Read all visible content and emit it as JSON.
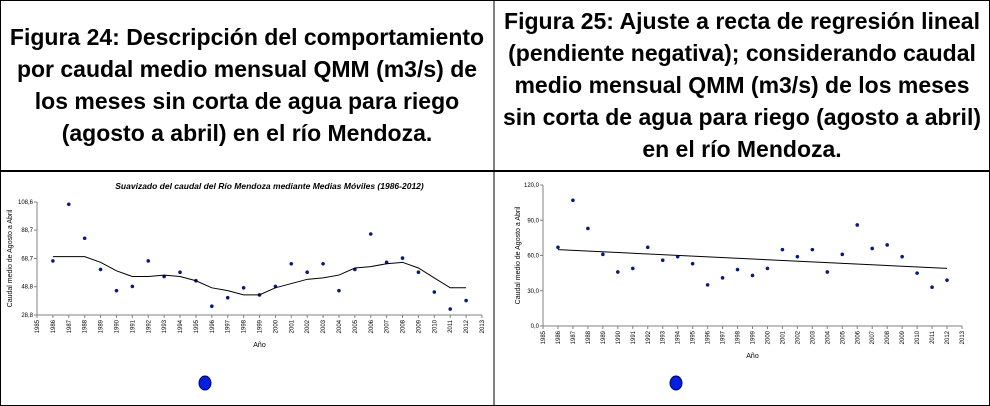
{
  "captions": [
    "Figura 24: Descripción del comportamiento por caudal medio mensual QMM (m3/s) de los meses sin corta de agua para riego (agosto a abril) en el río Mendoza.",
    "Figura 25: Ajuste a recta de regresión lineal (pendiente negativa); considerando caudal medio mensual QMM (m3/s) de los meses sin corta de agua para riego (agosto a abril) en el río Mendoza."
  ],
  "chart_data": [
    {
      "type": "scatter",
      "title": "Suavizado del caudal del Río Mendoza mediante Medias Móviles (1986-2012)",
      "y_label": "Caudal medio de Agosto a Abril",
      "x_label": "Año",
      "xlim": [
        1985,
        2013
      ],
      "xticks": [
        1985,
        1986,
        1987,
        1988,
        1989,
        1990,
        1991,
        1992,
        1993,
        1994,
        1995,
        1996,
        1997,
        1998,
        1999,
        2000,
        2001,
        2002,
        2003,
        2004,
        2005,
        2006,
        2007,
        2008,
        2009,
        2010,
        2011,
        2012,
        2013
      ],
      "ylim": [
        28.8,
        108.6
      ],
      "yticks": [
        {
          "value": 28.8,
          "label": "28,8"
        },
        {
          "value": 48.8,
          "label": "48,8"
        },
        {
          "value": 68.7,
          "label": "68,7"
        },
        {
          "value": 88.7,
          "label": "88,7"
        },
        {
          "value": 108.6,
          "label": "108,6"
        }
      ],
      "series": [
        {
          "type": "scatter",
          "color": "#0a1a7a",
          "x": [
            1986,
            1987,
            1988,
            1989,
            1990,
            1991,
            1992,
            1993,
            1994,
            1995,
            1996,
            1997,
            1998,
            1999,
            2000,
            2001,
            2002,
            2003,
            2004,
            2005,
            2006,
            2007,
            2008,
            2009,
            2010,
            2011,
            2012
          ],
          "values": [
            67,
            107,
            83,
            61,
            46,
            49,
            67,
            56,
            59,
            53,
            35,
            41,
            48,
            43,
            49,
            65,
            59,
            65,
            46,
            61,
            86,
            66,
            69,
            59,
            45,
            33,
            39
          ]
        },
        {
          "type": "line",
          "color": "#000000",
          "x": [
            1986,
            1987,
            1988,
            1989,
            1990,
            1991,
            1992,
            1993,
            1994,
            1995,
            1996,
            1997,
            1998,
            1999,
            2000,
            2001,
            2002,
            2003,
            2004,
            2005,
            2006,
            2007,
            2008,
            2009,
            2010,
            2011,
            2012
          ],
          "values": [
            70,
            70,
            70,
            66,
            60,
            56,
            56,
            57,
            56,
            53,
            48,
            46,
            43,
            43,
            48,
            51,
            54,
            55,
            57,
            62,
            63,
            65,
            66,
            62,
            55,
            48,
            48
          ]
        }
      ]
    },
    {
      "type": "scatter",
      "y_label": "Caudal medio de Agosto a Abril",
      "x_label": "Año",
      "xlim": [
        1985,
        2013
      ],
      "xticks": [
        1985,
        1986,
        1987,
        1988,
        1989,
        1990,
        1991,
        1992,
        1993,
        1994,
        1995,
        1996,
        1997,
        1998,
        1999,
        2000,
        2001,
        2002,
        2003,
        2004,
        2005,
        2006,
        2007,
        2008,
        2009,
        2010,
        2011,
        2012,
        2013
      ],
      "ylim": [
        0,
        120
      ],
      "yticks": [
        {
          "value": 0,
          "label": "0,0"
        },
        {
          "value": 30,
          "label": "30,0"
        },
        {
          "value": 60,
          "label": "60,0"
        },
        {
          "value": 90,
          "label": "90,0"
        },
        {
          "value": 120,
          "label": "120,0"
        }
      ],
      "series": [
        {
          "type": "scatter",
          "color": "#0a1a7a",
          "x": [
            1986,
            1987,
            1988,
            1989,
            1990,
            1991,
            1992,
            1993,
            1994,
            1995,
            1996,
            1997,
            1998,
            1999,
            2000,
            2001,
            2002,
            2003,
            2004,
            2005,
            2006,
            2007,
            2008,
            2009,
            2010,
            2011,
            2012
          ],
          "values": [
            67,
            107,
            83,
            61,
            46,
            49,
            67,
            56,
            59,
            53,
            35,
            41,
            48,
            43,
            49,
            65,
            59,
            65,
            46,
            61,
            86,
            66,
            69,
            59,
            45,
            33,
            39
          ]
        },
        {
          "type": "line",
          "color": "#000000",
          "x": [
            1986,
            2012
          ],
          "values": [
            65,
            49
          ]
        }
      ]
    }
  ]
}
